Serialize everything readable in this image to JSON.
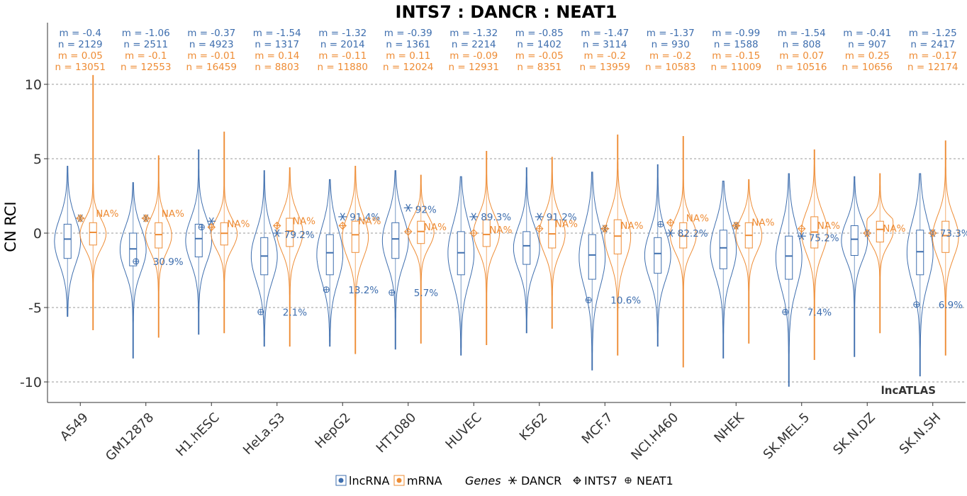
{
  "chart_data": {
    "type": "violin-box",
    "title": "INTS7 : DANCR : NEAT1",
    "ylabel": "CN RCI",
    "ylim": [
      -11.2,
      14.2
    ],
    "yticks": [
      10,
      5,
      0,
      -5,
      -10
    ],
    "ytick_labels": [
      "10",
      "5",
      "0",
      "-5",
      "-10"
    ],
    "grid": true,
    "watermark": "lncATLAS",
    "colors": {
      "lncRNA": "#3e6eae",
      "mRNA": "#ee8c35"
    },
    "categories": [
      "A549",
      "GM12878",
      "H1.hESC",
      "HeLa.S3",
      "HepG2",
      "HT1080",
      "HUVEC",
      "K562",
      "MCF.7",
      "NCI.H460",
      "NHEK",
      "SK.MEL.5",
      "SK.N.DZ",
      "SK.N.SH"
    ],
    "stats": [
      {
        "l_m": "m = -0.4",
        "l_n": "n = 2129",
        "m_m": "m = 0.05",
        "m_n": "n = 13051"
      },
      {
        "l_m": "m = -1.06",
        "l_n": "n = 2511",
        "m_m": "m = -0.1",
        "m_n": "n = 12553"
      },
      {
        "l_m": "m = -0.37",
        "l_n": "n = 4923",
        "m_m": "m = -0.01",
        "m_n": "n = 16459"
      },
      {
        "l_m": "m = -1.54",
        "l_n": "n = 1317",
        "m_m": "m = 0.14",
        "m_n": "n = 8803"
      },
      {
        "l_m": "m = -1.32",
        "l_n": "n = 2014",
        "m_m": "m = -0.11",
        "m_n": "n = 11880"
      },
      {
        "l_m": "m = -0.39",
        "l_n": "n = 1361",
        "m_m": "m = 0.11",
        "m_n": "n = 12024"
      },
      {
        "l_m": "m = -1.32",
        "l_n": "n = 2214",
        "m_m": "m = -0.09",
        "m_n": "n = 12931"
      },
      {
        "l_m": "m = -0.85",
        "l_n": "n = 1402",
        "m_m": "m = -0.05",
        "m_n": "n = 8351"
      },
      {
        "l_m": "m = -1.47",
        "l_n": "n = 3114",
        "m_m": "m = -0.2",
        "m_n": "n = 13959"
      },
      {
        "l_m": "m = -1.37",
        "l_n": "n = 930",
        "m_m": "m = -0.2",
        "m_n": "n = 10583"
      },
      {
        "l_m": "m = -0.99",
        "l_n": "n = 1588",
        "m_m": "m = -0.15",
        "m_n": "n = 11009"
      },
      {
        "l_m": "m = -1.54",
        "l_n": "n = 808",
        "m_m": "m = 0.07",
        "m_n": "n = 10516"
      },
      {
        "l_m": "m = -0.41",
        "l_n": "n = 907",
        "m_m": "m = 0.25",
        "m_n": "n = 10656"
      },
      {
        "l_m": "m = -1.25",
        "l_n": "n = 2417",
        "m_m": "m = -0.17",
        "m_n": "n = 12174"
      }
    ],
    "lncRNA_median": [
      -0.4,
      -1.06,
      -0.37,
      -1.54,
      -1.32,
      -0.39,
      -1.32,
      -0.85,
      -1.47,
      -1.37,
      -0.99,
      -1.54,
      -0.41,
      -1.25
    ],
    "mRNA_median": [
      0.05,
      -0.1,
      -0.01,
      0.14,
      -0.11,
      0.11,
      -0.09,
      -0.05,
      -0.2,
      -0.2,
      -0.15,
      0.07,
      0.25,
      -0.17
    ],
    "lncRNA_box": [
      [
        -1.7,
        0.6,
        -5.6,
        4.5
      ],
      [
        -2.2,
        0.0,
        -8.4,
        3.4
      ],
      [
        -1.6,
        0.6,
        -6.8,
        5.6
      ],
      [
        -2.8,
        -0.3,
        -7.6,
        4.2
      ],
      [
        -2.8,
        -0.1,
        -7.6,
        3.6
      ],
      [
        -1.7,
        0.7,
        -7.8,
        4.2
      ],
      [
        -2.8,
        0.1,
        -8.2,
        3.8
      ],
      [
        -2.1,
        0.1,
        -6.7,
        4.4
      ],
      [
        -3.1,
        -0.1,
        -9.2,
        4.1
      ],
      [
        -2.7,
        -0.3,
        -7.6,
        4.6
      ],
      [
        -2.4,
        0.2,
        -8.4,
        3.5
      ],
      [
        -3.1,
        -0.2,
        -10.3,
        4.0
      ],
      [
        -1.5,
        0.5,
        -8.3,
        3.8
      ],
      [
        -2.8,
        0.2,
        -9.6,
        4.0
      ]
    ],
    "mRNA_box": [
      [
        -0.8,
        0.7,
        -6.5,
        10.6
      ],
      [
        -1.0,
        0.7,
        -7.0,
        5.2
      ],
      [
        -0.8,
        0.7,
        -6.7,
        6.8
      ],
      [
        -0.9,
        1.0,
        -7.6,
        4.4
      ],
      [
        -1.3,
        0.8,
        -8.1,
        4.5
      ],
      [
        -0.7,
        0.8,
        -7.4,
        3.9
      ],
      [
        -0.9,
        0.9,
        -7.5,
        5.5
      ],
      [
        -1.0,
        0.9,
        -6.4,
        5.1
      ],
      [
        -1.4,
        0.9,
        -8.2,
        6.6
      ],
      [
        -1.0,
        0.7,
        -9.0,
        6.5
      ],
      [
        -1.0,
        0.7,
        -7.4,
        3.6
      ],
      [
        -1.0,
        1.1,
        -8.5,
        5.6
      ],
      [
        -0.6,
        0.8,
        -6.7,
        4.0
      ],
      [
        -1.3,
        0.8,
        -8.2,
        6.2
      ]
    ],
    "genes": {
      "DANCR": [
        1.0,
        1.0,
        0.8,
        0.0,
        1.1,
        1.7,
        1.1,
        1.1,
        0.3,
        0.0,
        0.5,
        -0.2,
        0.0,
        0.0
      ],
      "INTS7": [
        1.0,
        1.0,
        0.4,
        0.5,
        0.5,
        0.1,
        0.0,
        0.3,
        0.3,
        0.7,
        0.5,
        0.3,
        0.0,
        0.0
      ],
      "NEAT1": [
        null,
        -1.9,
        0.4,
        -5.3,
        -3.8,
        -4.0,
        null,
        null,
        -4.5,
        0.6,
        null,
        -5.3,
        null,
        -4.8
      ]
    },
    "gene_label_values": [
      0.9,
      -1.9,
      0.3,
      -0.1,
      1.1,
      1.6,
      1.1,
      1.1,
      0.3,
      0.0,
      0.4,
      -0.3,
      0.0,
      0.0
    ],
    "lnc_pct_labels": [
      {
        "text": "",
        "y": 0
      },
      {
        "text": "30.9%",
        "y": -1.9
      },
      {
        "text": "",
        "y": 0
      },
      {
        "text": "79.2%",
        "y": -0.1
      },
      {
        "text": "91.4%",
        "y": 1.1
      },
      {
        "text": "92%",
        "y": 1.6
      },
      {
        "text": "89.3%",
        "y": 1.1
      },
      {
        "text": "91.2%",
        "y": 1.1
      },
      {
        "text": "",
        "y": 0
      },
      {
        "text": "82.2%",
        "y": 0.0
      },
      {
        "text": "",
        "y": 0
      },
      {
        "text": "75.2%",
        "y": -0.3
      },
      {
        "text": "",
        "y": 0
      },
      {
        "text": "73.3%",
        "y": 0.0
      }
    ],
    "neat1_pct_labels": [
      {
        "text": "",
        "y": 0
      },
      {
        "text": "",
        "y": 0
      },
      {
        "text": "",
        "y": 0
      },
      {
        "text": "2.1%",
        "y": -5.3
      },
      {
        "text": "13.2%",
        "y": -3.8
      },
      {
        "text": "5.7%",
        "y": -4.0
      },
      {
        "text": "",
        "y": 0
      },
      {
        "text": "",
        "y": 0
      },
      {
        "text": "10.6%",
        "y": -4.5
      },
      {
        "text": "",
        "y": 0
      },
      {
        "text": "",
        "y": 0
      },
      {
        "text": "7.4%",
        "y": -5.3
      },
      {
        "text": "",
        "y": 0
      },
      {
        "text": "6.9%",
        "y": -4.8
      }
    ],
    "mrna_pct_labels": [
      {
        "text": "NA%",
        "y": 1.0
      },
      {
        "text": "NA%",
        "y": 1.0
      },
      {
        "text": "NA%",
        "y": 0.3
      },
      {
        "text": "NA%",
        "y": 0.5
      },
      {
        "text": "NA%",
        "y": 0.5
      },
      {
        "text": "NA%",
        "y": 0.1
      },
      {
        "text": "NA%",
        "y": -0.1
      },
      {
        "text": "NA%",
        "y": 0.3
      },
      {
        "text": "NA%",
        "y": 0.2
      },
      {
        "text": "NA%",
        "y": 0.7
      },
      {
        "text": "NA%",
        "y": 0.4
      },
      {
        "text": "NA%",
        "y": 0.2
      },
      {
        "text": "NA%",
        "y": 0.0
      },
      {
        "text": "",
        "y": 0
      }
    ],
    "legend": {
      "items": [
        "lncRNA",
        "mRNA"
      ],
      "genes_title": "Genes",
      "genes": [
        "DANCR",
        "INTS7",
        "NEAT1"
      ]
    }
  }
}
